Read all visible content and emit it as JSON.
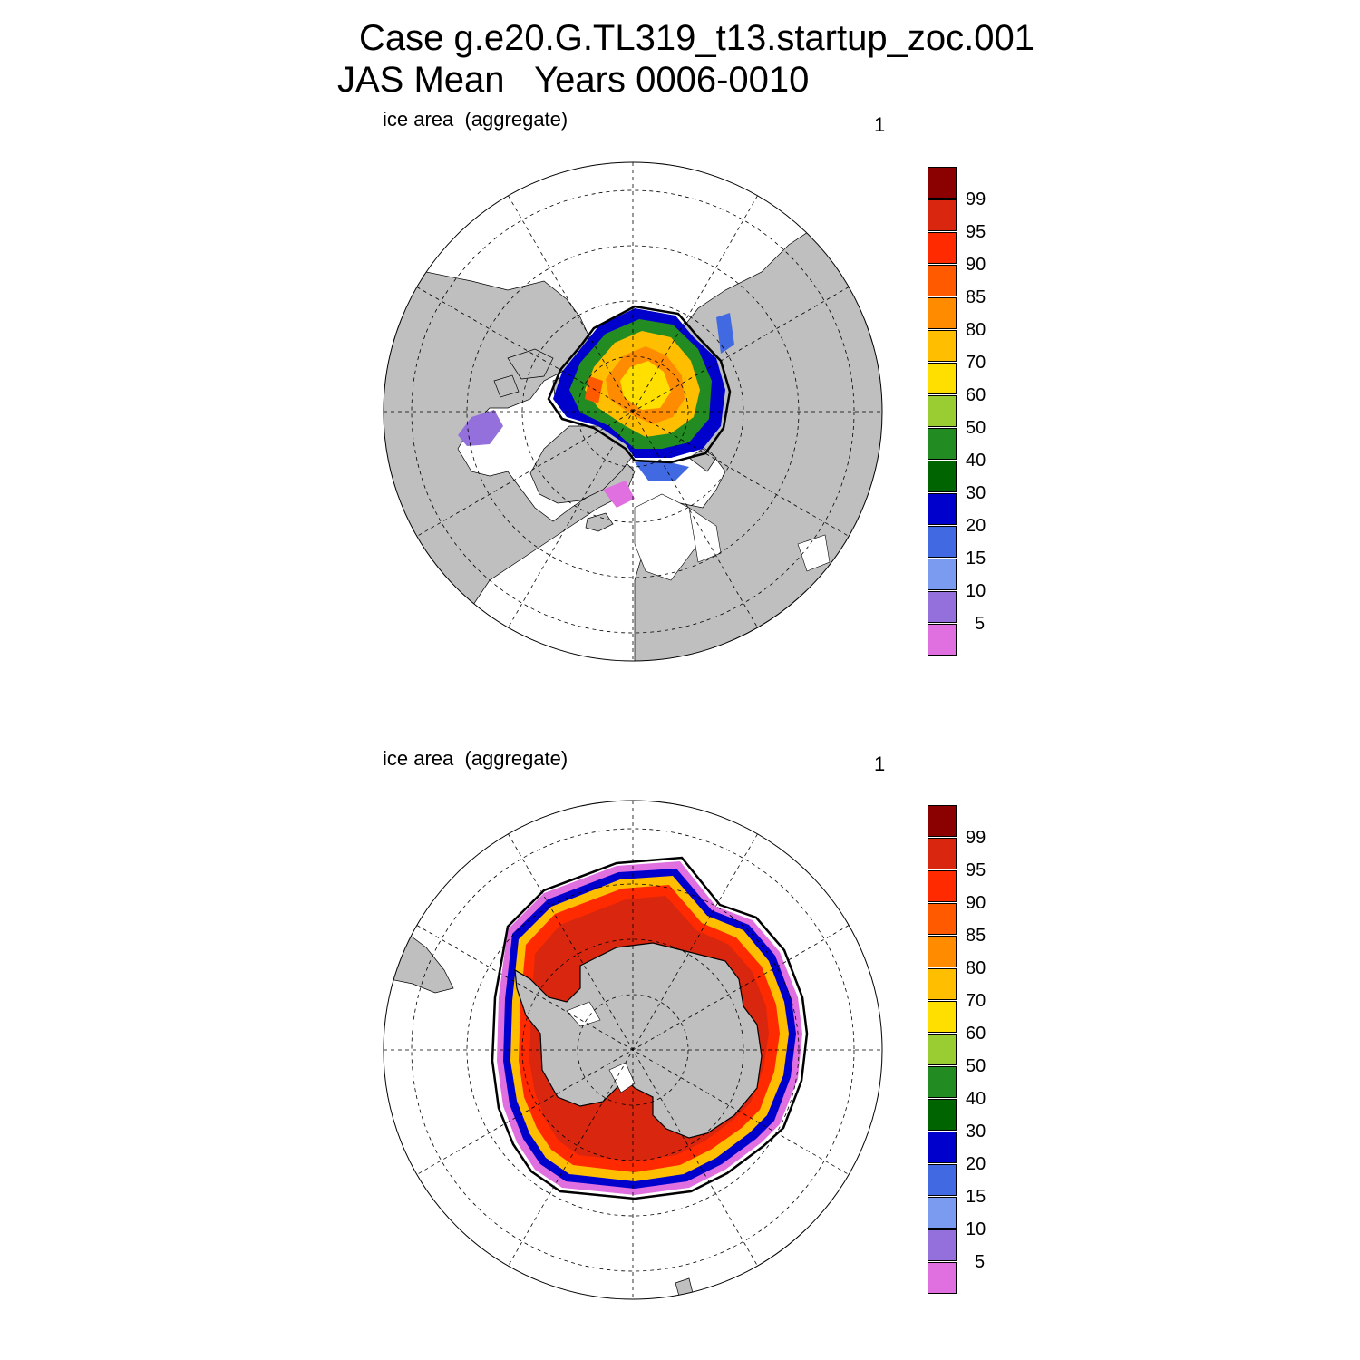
{
  "title": {
    "line1": "Case g.e20.G.TL319_t13.startup_zoc.001",
    "line2": "JAS Mean   Years 0006-0010"
  },
  "panels": [
    {
      "id": "north",
      "hemisphere": "Arctic",
      "label": "ice area  (aggregate)",
      "number": "1"
    },
    {
      "id": "south",
      "hemisphere": "Antarctic",
      "label": "ice area  (aggregate)",
      "number": "1"
    }
  ],
  "colorbar": {
    "levels": [
      "99",
      "95",
      "90",
      "85",
      "80",
      "70",
      "60",
      "50",
      "40",
      "30",
      "20",
      "15",
      "10",
      "5"
    ],
    "colors": [
      "#8b0000",
      "#d9260f",
      "#ff2a00",
      "#ff5a00",
      "#ff8c00",
      "#ffbf00",
      "#ffdf00",
      "#9acd32",
      "#228b22",
      "#006400",
      "#0000cd",
      "#4169e1",
      "#7b9bf0",
      "#9370db",
      "#e070e0"
    ]
  },
  "map_colors": {
    "land": "#bfbfbf",
    "ocean": "#ffffff"
  }
}
